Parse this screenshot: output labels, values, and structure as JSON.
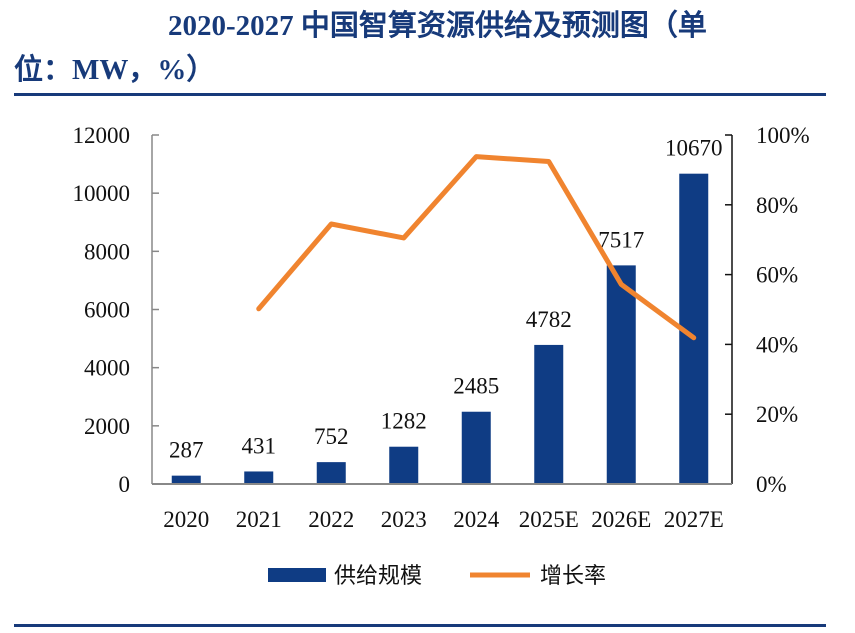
{
  "title": {
    "line1": "2020-2027 中国智算资源供给及预测图（单",
    "line2": "位：MW，%）"
  },
  "colors": {
    "bar": "#0f3c84",
    "line": "#f0842f",
    "title": "#173a7a",
    "rule": "#173a7a"
  },
  "chart_data": {
    "type": "bar+line",
    "categories": [
      "2020",
      "2021",
      "2022",
      "2023",
      "2024",
      "2025E",
      "2026E",
      "2027E"
    ],
    "series": [
      {
        "name": "供给规模",
        "type": "bar",
        "axis": "left",
        "values": [
          287,
          431,
          752,
          1282,
          2485,
          4782,
          7517,
          10670
        ],
        "data_labels": [
          "287",
          "431",
          "752",
          "1282",
          "2485",
          "4782",
          "7517",
          "10670"
        ]
      },
      {
        "name": "增长率",
        "type": "line",
        "axis": "right",
        "values": [
          null,
          50.2,
          74.5,
          70.5,
          93.8,
          92.4,
          57.2,
          41.9
        ]
      }
    ],
    "y_left": {
      "range": [
        0,
        12000
      ],
      "ticks": [
        "0",
        "2000",
        "4000",
        "6000",
        "8000",
        "10000",
        "12000"
      ]
    },
    "y_right": {
      "range": [
        0,
        100
      ],
      "ticks": [
        "0%",
        "20%",
        "40%",
        "60%",
        "80%",
        "100%"
      ]
    },
    "grid": false,
    "legend": "bottom"
  }
}
